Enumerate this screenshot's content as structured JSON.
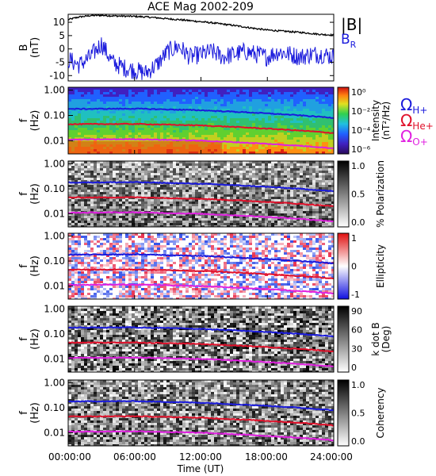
{
  "figure": {
    "title": "ACE Mag 2002-209",
    "xlabel": "Time (UT)",
    "xticks": [
      "00:00:00",
      "06:00:00",
      "12:00:00",
      "18:00:00",
      "24:00:00"
    ]
  },
  "colors": {
    "B_total": "#000000",
    "B_R": "#1a1adc",
    "H_plus": "#1a1adc",
    "He_plus": "#e0102a",
    "O_plus": "#e020e0"
  },
  "chart_data": [
    {
      "type": "line",
      "panel": "field",
      "ylabel": "B (nT)",
      "xlim": [
        0,
        24
      ],
      "ylim": [
        -12,
        13
      ],
      "yticks": [
        "10",
        "5",
        "0",
        "-5",
        "-10"
      ],
      "x_unit": "hours UT",
      "series": [
        {
          "name": "|B|",
          "x": [
            0,
            1,
            2,
            3,
            4,
            5,
            6,
            7,
            8,
            9,
            10,
            11,
            12,
            13,
            14,
            15,
            16,
            17,
            18,
            19,
            20,
            21,
            22,
            23,
            24
          ],
          "values": [
            11.0,
            12.0,
            12.5,
            12.6,
            12.4,
            12.3,
            12.2,
            12.0,
            11.7,
            11.3,
            11.0,
            10.6,
            10.2,
            9.8,
            9.3,
            8.8,
            8.2,
            7.6,
            7.1,
            6.8,
            6.5,
            6.2,
            5.8,
            5.4,
            5.2
          ]
        },
        {
          "name": "B_R",
          "x": [
            0,
            1,
            2,
            3,
            4,
            5,
            6,
            7,
            8,
            9,
            10,
            11,
            12,
            13,
            14,
            15,
            16,
            17,
            18,
            19,
            20,
            21,
            22,
            23,
            24
          ],
          "values": [
            -4,
            -6,
            -3,
            2,
            -5,
            -7,
            -8,
            -9,
            -6,
            -1,
            1,
            -3,
            -2,
            -1,
            -3,
            -2,
            -1,
            -2,
            -3,
            -1,
            -2,
            -3,
            -2,
            -2,
            -3
          ]
        }
      ]
    },
    {
      "type": "heatmap",
      "panel": "power",
      "ylabel": "f (Hz)",
      "yticks": [
        "1.00",
        "0.10",
        "0.01"
      ],
      "colorbar_label": "Intensity (nT²/Hz)",
      "colorbar_ticks": [
        "10⁰",
        "10⁻²",
        "10⁻⁴",
        "10⁻⁶"
      ]
    },
    {
      "type": "heatmap",
      "panel": "polarization",
      "ylabel": "f (Hz)",
      "yticks": [
        "1.00",
        "0.10",
        "0.01"
      ],
      "colorbar_label": "% Polarization",
      "colorbar_ticks": [
        "1.0",
        "0.5",
        "0.0"
      ]
    },
    {
      "type": "heatmap",
      "panel": "ellipticity",
      "ylabel": "f (Hz)",
      "yticks": [
        "1.00",
        "0.10",
        "0.01"
      ],
      "colorbar_label": "Ellipticity",
      "colorbar_ticks": [
        "1",
        "0",
        "-1"
      ]
    },
    {
      "type": "heatmap",
      "panel": "kdotb",
      "ylabel": "f (Hz)",
      "yticks": [
        "1.00",
        "0.10",
        "0.01"
      ],
      "colorbar_label": "k dot B (Deg)",
      "colorbar_ticks": [
        "90",
        "60",
        "30",
        "0"
      ]
    },
    {
      "type": "heatmap",
      "panel": "coherency",
      "ylabel": "f (Hz)",
      "yticks": [
        "1.00",
        "0.10",
        "0.01"
      ],
      "colorbar_label": "Coherency",
      "colorbar_ticks": [
        "1.0",
        "0.5",
        "0.0"
      ]
    },
    {
      "type": "line",
      "panel": "gyrofrequency overlays (drawn on all spectral panels)",
      "x_unit": "hours UT",
      "y_unit": "Hz",
      "log_y": true,
      "series": [
        {
          "name": "ΩH+",
          "x": [
            0,
            6,
            12,
            18,
            24
          ],
          "values": [
            0.18,
            0.185,
            0.16,
            0.12,
            0.08
          ]
        },
        {
          "name": "ΩHe+",
          "x": [
            0,
            6,
            12,
            18,
            24
          ],
          "values": [
            0.045,
            0.046,
            0.04,
            0.03,
            0.02
          ]
        },
        {
          "name": "ΩO+",
          "x": [
            0,
            6,
            12,
            18,
            24
          ],
          "values": [
            0.011,
            0.0115,
            0.01,
            0.0075,
            0.005
          ]
        }
      ]
    }
  ],
  "legend": {
    "b_total": "|B|",
    "b_r": "B",
    "b_r_sub": "R",
    "omega": "Ω",
    "h_sub": "H+",
    "he_sub": "He+",
    "o_sub": "O+"
  },
  "ylabels": {
    "field_top": "B",
    "field_bottom": "(nT)",
    "f_top": "f",
    "f_bottom": "(Hz)"
  },
  "cbar_labels": {
    "power_1": "Intensity",
    "power_2": "(nT²/Hz)",
    "polarization": "% Polarization",
    "ellipticity": "Ellipticity",
    "kdotb_1": "k dot B",
    "kdotb_2": "(Deg)",
    "coherency": "Coherency"
  }
}
